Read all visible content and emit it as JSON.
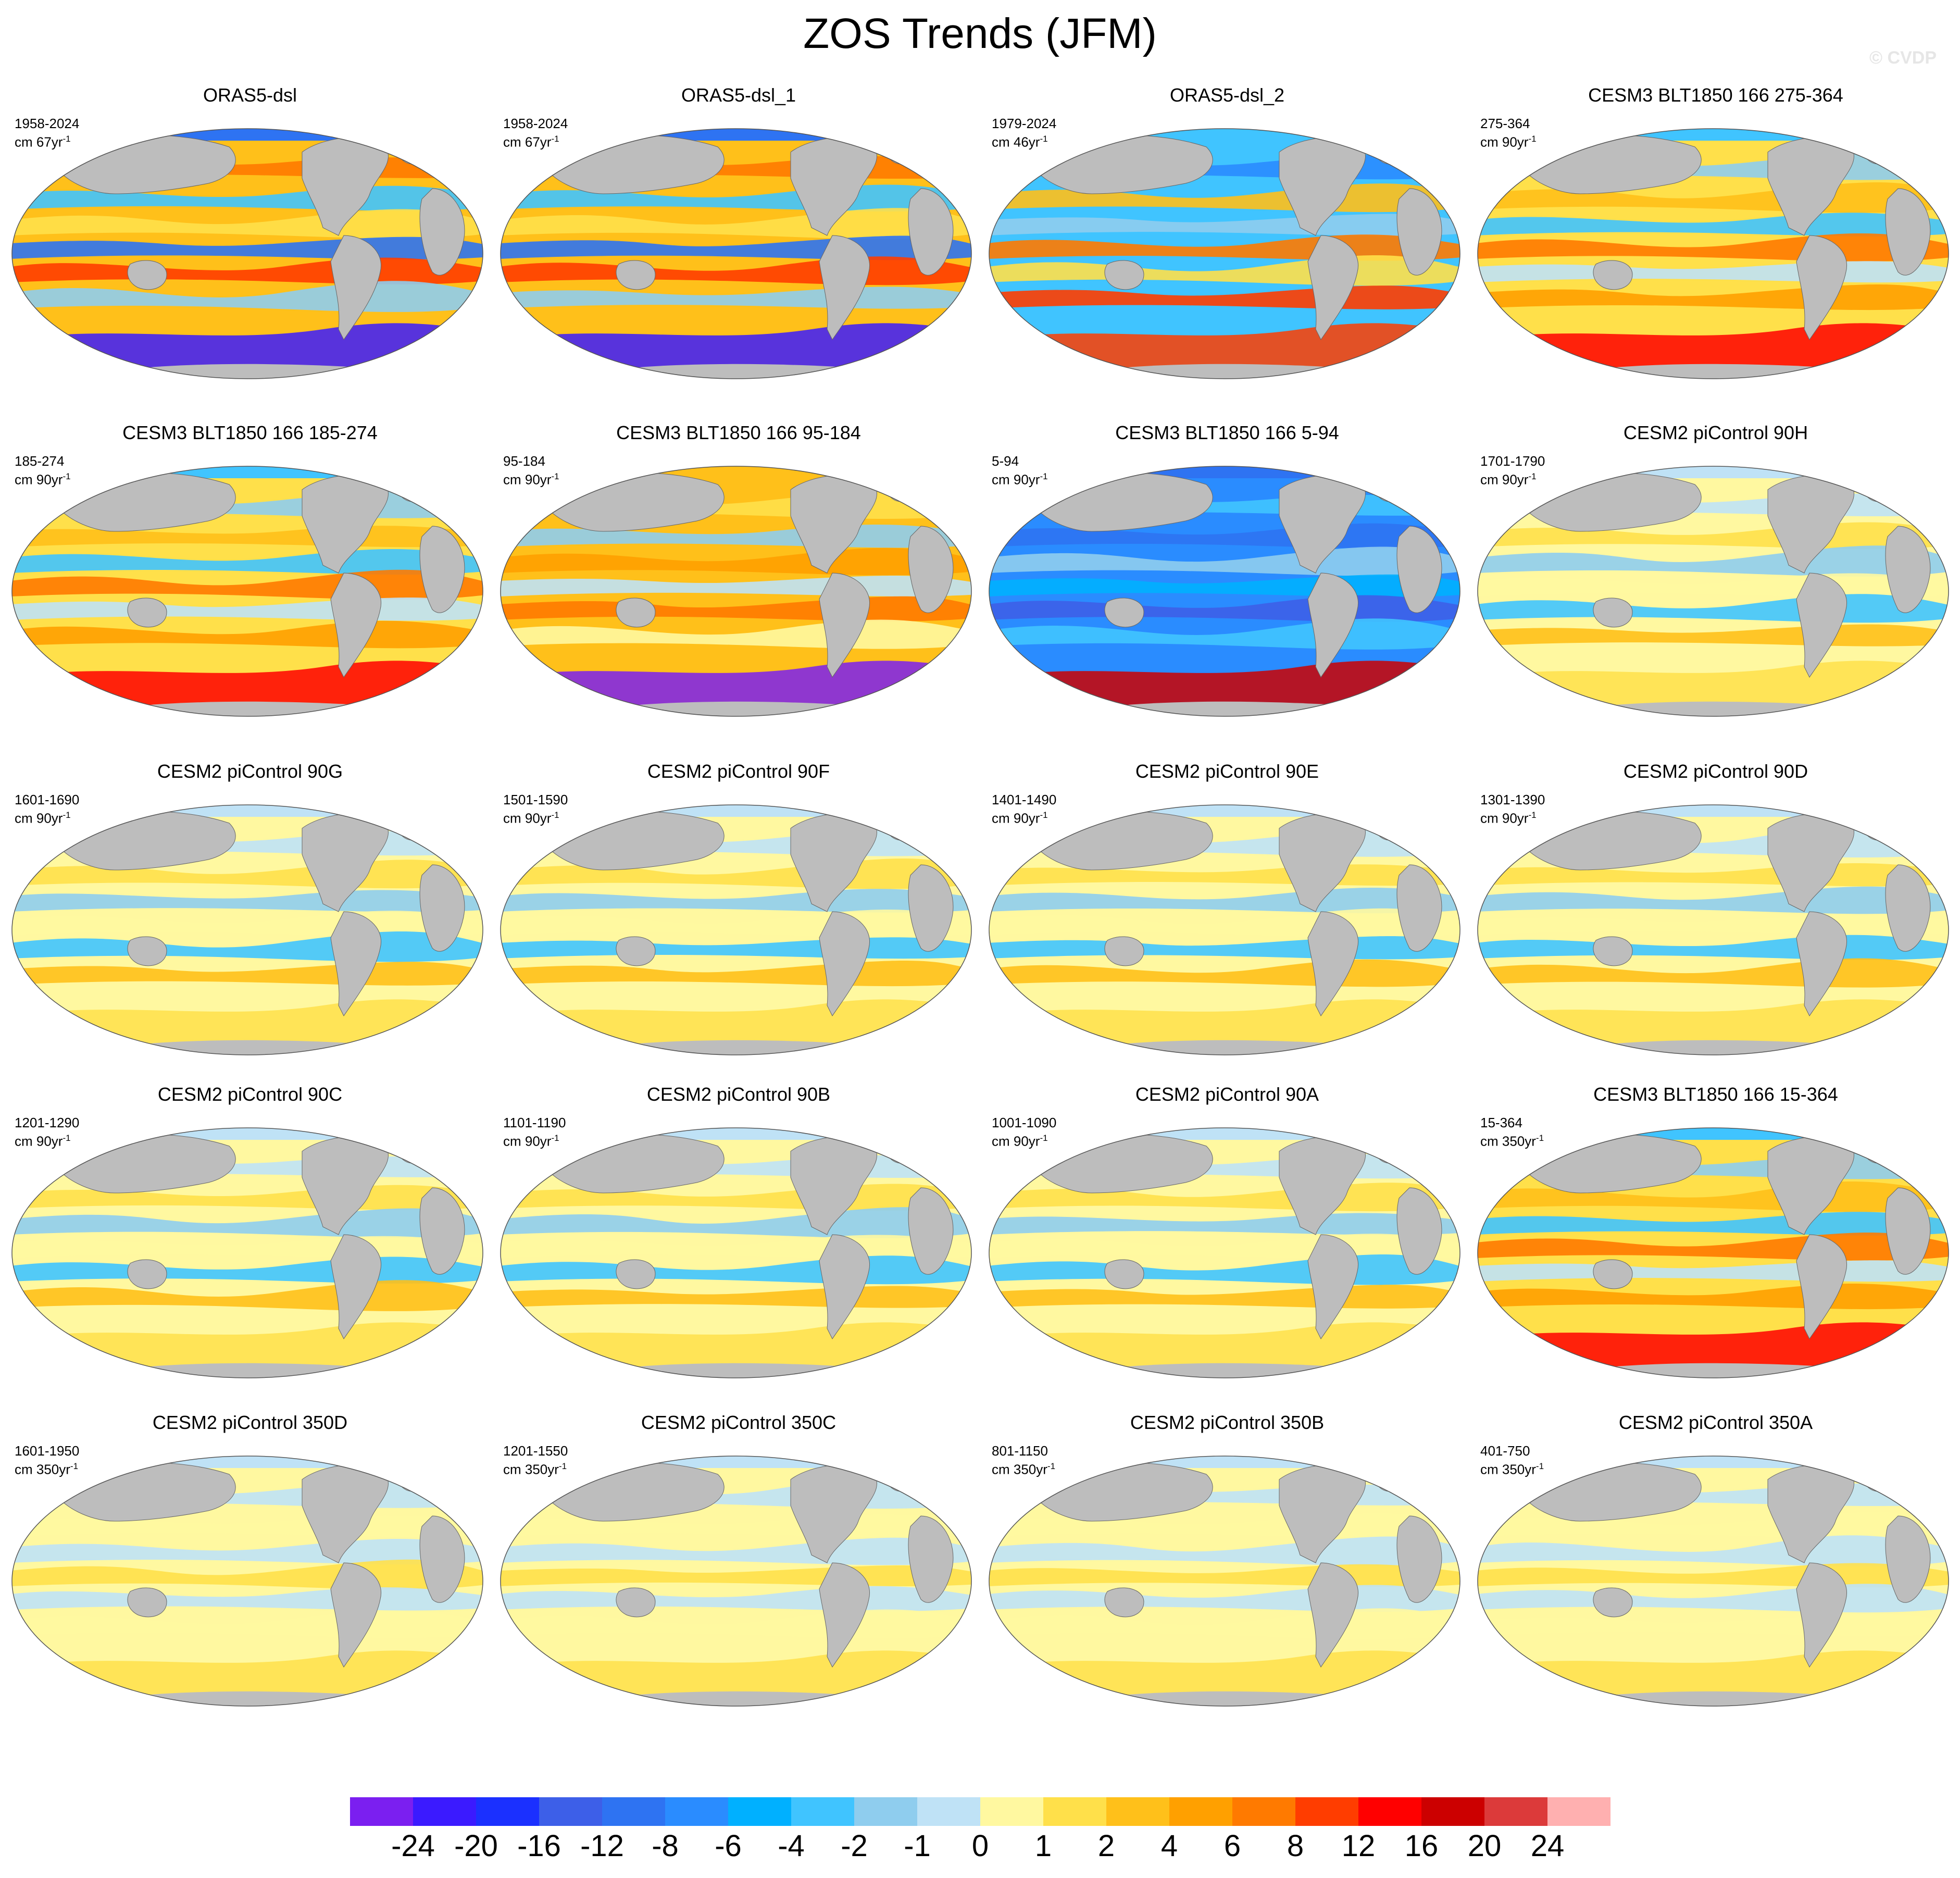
{
  "title": "ZOS Trends (JFM)",
  "watermark": "© CVDP",
  "panels": [
    {
      "title": "ORAS5-dsl",
      "years": "1958-2024",
      "units": "cm 67yr",
      "exp": "-1",
      "style": "obs"
    },
    {
      "title": "ORAS5-dsl_1",
      "years": "1958-2024",
      "units": "cm 67yr",
      "exp": "-1",
      "style": "obs"
    },
    {
      "title": "ORAS5-dsl_2",
      "years": "1979-2024",
      "units": "cm 46yr",
      "exp": "-1",
      "style": "obs2"
    },
    {
      "title": "CESM3 BLT1850 166 275-364",
      "years": "275-364",
      "units": "cm 90yr",
      "exp": "-1",
      "style": "model_strong"
    },
    {
      "title": "CESM3 BLT1850 166 185-274",
      "years": "185-274",
      "units": "cm 90yr",
      "exp": "-1",
      "style": "model_strong"
    },
    {
      "title": "CESM3 BLT1850 166 95-184",
      "years": "95-184",
      "units": "cm 90yr",
      "exp": "-1",
      "style": "model_warm"
    },
    {
      "title": "CESM3 BLT1850 166 5-94",
      "years": "5-94",
      "units": "cm 90yr",
      "exp": "-1",
      "style": "model_blue"
    },
    {
      "title": "CESM2 piControl 90H",
      "years": "1701-1790",
      "units": "cm 90yr",
      "exp": "-1",
      "style": "model_mild"
    },
    {
      "title": "CESM2 piControl 90G",
      "years": "1601-1690",
      "units": "cm 90yr",
      "exp": "-1",
      "style": "model_mild"
    },
    {
      "title": "CESM2 piControl 90F",
      "years": "1501-1590",
      "units": "cm 90yr",
      "exp": "-1",
      "style": "model_mild"
    },
    {
      "title": "CESM2 piControl 90E",
      "years": "1401-1490",
      "units": "cm 90yr",
      "exp": "-1",
      "style": "model_mild"
    },
    {
      "title": "CESM2 piControl 90D",
      "years": "1301-1390",
      "units": "cm 90yr",
      "exp": "-1",
      "style": "model_mild"
    },
    {
      "title": "CESM2 piControl 90C",
      "years": "1201-1290",
      "units": "cm 90yr",
      "exp": "-1",
      "style": "model_mild"
    },
    {
      "title": "CESM2 piControl 90B",
      "years": "1101-1190",
      "units": "cm 90yr",
      "exp": "-1",
      "style": "model_mild"
    },
    {
      "title": "CESM2 piControl 90A",
      "years": "1001-1090",
      "units": "cm 90yr",
      "exp": "-1",
      "style": "model_mild"
    },
    {
      "title": "CESM3 BLT1850 166 15-364",
      "years": "15-364",
      "units": "cm 350yr",
      "exp": "-1",
      "style": "model_strong"
    },
    {
      "title": "CESM2 piControl 350D",
      "years": "1601-1950",
      "units": "cm 350yr",
      "exp": "-1",
      "style": "model_weak"
    },
    {
      "title": "CESM2 piControl 350C",
      "years": "1201-1550",
      "units": "cm 350yr",
      "exp": "-1",
      "style": "model_weak"
    },
    {
      "title": "CESM2 piControl 350B",
      "years": "801-1150",
      "units": "cm 350yr",
      "exp": "-1",
      "style": "model_weak"
    },
    {
      "title": "CESM2 piControl 350A",
      "years": "401-750",
      "units": "cm 350yr",
      "exp": "-1",
      "style": "model_weak"
    }
  ],
  "colorbar": {
    "colors": [
      "#7b1ff0",
      "#3b1aff",
      "#1b30ff",
      "#3d5fe8",
      "#2e73f2",
      "#2a8cff",
      "#00b0ff",
      "#40c4ff",
      "#8fcdee",
      "#bfe2f6",
      "#fff8a0",
      "#ffe04a",
      "#ffc01a",
      "#ffa000",
      "#ff7a00",
      "#ff3d00",
      "#ff0000",
      "#cc0000",
      "#dc3a3a",
      "#ffb0b0"
    ],
    "labels": [
      "-24",
      "-20",
      "-16",
      "-12",
      "-8",
      "-6",
      "-4",
      "-2",
      "-1",
      "0",
      "1",
      "2",
      "4",
      "6",
      "8",
      "12",
      "16",
      "20",
      "24"
    ]
  },
  "land_color": "#bdbdbd",
  "ocean_background": "#ffffff"
}
